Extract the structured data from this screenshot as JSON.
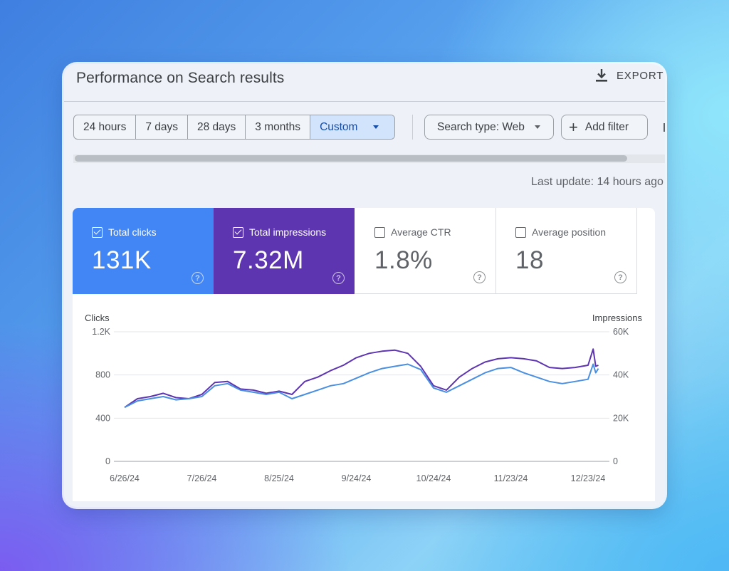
{
  "header": {
    "title": "Performance on Search results",
    "export_label": "EXPORT"
  },
  "filters": {
    "date_ranges": [
      "24 hours",
      "7 days",
      "28 days",
      "3 months",
      "Custom"
    ],
    "active_range": "Custom",
    "search_type": "Search type: Web",
    "add_filter": "Add filter"
  },
  "status": {
    "last_update": "Last update: 14 hours ago"
  },
  "metrics": [
    {
      "label": "Total clicks",
      "value": "131K",
      "checked": true,
      "color": "#4285f4"
    },
    {
      "label": "Total impressions",
      "value": "7.32M",
      "checked": true,
      "color": "#5e35b1"
    },
    {
      "label": "Average CTR",
      "value": "1.8%",
      "checked": false
    },
    {
      "label": "Average position",
      "value": "18",
      "checked": false
    }
  ],
  "chart_data": {
    "type": "line",
    "ylabel": "Clicks",
    "y2label": "Impressions",
    "ylim": [
      0,
      1200
    ],
    "y2lim": [
      0,
      60000
    ],
    "y_ticks": [
      "0",
      "400",
      "800",
      "1.2K"
    ],
    "y2_ticks": [
      "0",
      "20K",
      "40K",
      "60K"
    ],
    "x_ticks": [
      "6/26/24",
      "7/26/24",
      "8/25/24",
      "9/24/24",
      "10/24/24",
      "11/23/24",
      "12/23/24"
    ],
    "x_tick_days": [
      0,
      30,
      60,
      90,
      120,
      150,
      180
    ],
    "x_days": [
      0,
      5,
      10,
      15,
      20,
      25,
      30,
      35,
      40,
      45,
      50,
      55,
      60,
      65,
      70,
      75,
      80,
      85,
      90,
      95,
      100,
      105,
      110,
      115,
      120,
      125,
      130,
      135,
      140,
      145,
      150,
      155,
      160,
      165,
      170,
      175,
      180,
      182,
      183,
      184
    ],
    "series": [
      {
        "name": "Clicks",
        "axis": "left",
        "color": "#4a8fe0",
        "values": [
          500,
          560,
          580,
          600,
          570,
          580,
          600,
          700,
          720,
          660,
          640,
          620,
          640,
          580,
          620,
          660,
          700,
          720,
          770,
          820,
          860,
          880,
          900,
          850,
          680,
          640,
          700,
          760,
          820,
          860,
          870,
          820,
          780,
          740,
          720,
          740,
          760,
          900,
          820,
          860
        ]
      },
      {
        "name": "Impressions",
        "axis": "right",
        "color": "#5e35b1",
        "values": [
          25000,
          29000,
          30000,
          31500,
          29500,
          29000,
          31000,
          36500,
          37000,
          33500,
          33000,
          31500,
          32500,
          31000,
          37000,
          39000,
          42000,
          44500,
          48000,
          50000,
          51000,
          51500,
          50000,
          44000,
          35000,
          33000,
          39000,
          43000,
          46000,
          47500,
          48000,
          47500,
          46500,
          43500,
          43000,
          43500,
          44500,
          52000,
          44000,
          44500
        ]
      }
    ]
  }
}
